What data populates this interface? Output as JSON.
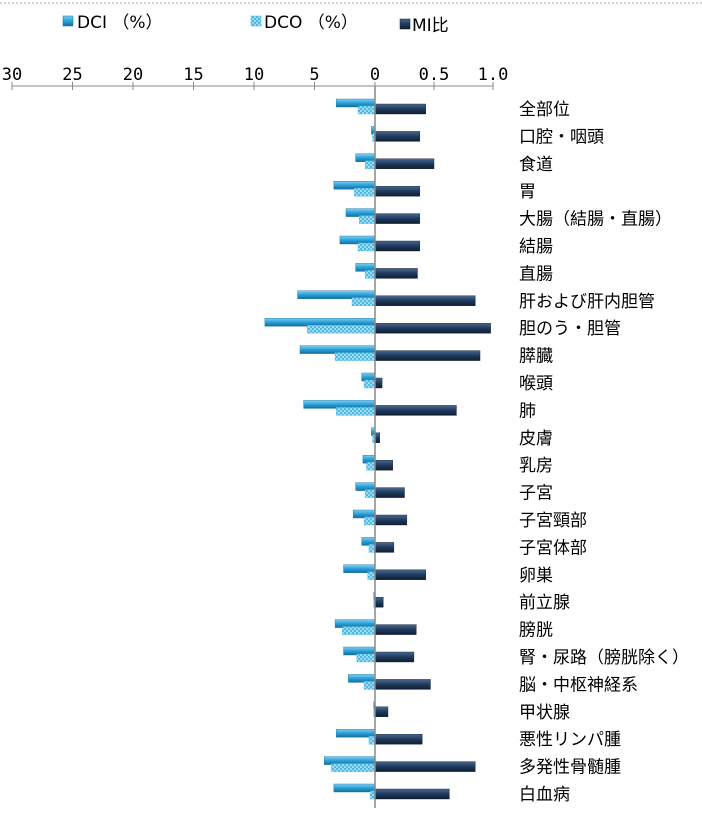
{
  "chart_data": {
    "type": "bar",
    "orientation": "horizontal",
    "layout": "diverging: DCI and DCO extend left (percent scale 0-30), MI比 extends right (ratio scale 0-1.0)",
    "legend": {
      "placement": "top",
      "entries": [
        "DCI （%）",
        "DCO （%）",
        "MI比"
      ]
    },
    "left_axis": {
      "range": [
        0,
        30
      ],
      "ticks": [
        30,
        25,
        20,
        15,
        10,
        5,
        0
      ],
      "tick_labels": [
        "30",
        "25",
        "20",
        "15",
        "10",
        "5",
        "0"
      ]
    },
    "right_axis": {
      "range": [
        0,
        1.0
      ],
      "ticks": [
        0.5,
        1.0
      ],
      "tick_labels": [
        "0.5",
        "1.0"
      ]
    },
    "categories": [
      "全部位",
      "口腔・咽頭",
      "食道",
      "胃",
      "大腸（結腸・直腸）",
      "結腸",
      "直腸",
      "肝および肝内胆管",
      "胆のう・胆管",
      "膵臓",
      "喉頭",
      "肺",
      "皮膚",
      "乳房",
      "子宮",
      "子宮頸部",
      "子宮体部",
      "卵巣",
      "前立腺",
      "膀胱",
      "腎・尿路（膀胱除く）",
      "脳・中枢神経系",
      "甲状腺",
      "悪性リンパ腫",
      "多発性骨髄腫",
      "白血病"
    ],
    "series": [
      {
        "name": "DCI （%）",
        "side": "left",
        "color": "#2aa0d8",
        "values": [
          3.2,
          0.3,
          1.6,
          3.4,
          2.4,
          2.9,
          1.6,
          6.4,
          9.1,
          6.2,
          1.1,
          5.9,
          0.3,
          1.0,
          1.6,
          1.8,
          1.1,
          2.6,
          0.1,
          3.3,
          2.6,
          2.2,
          0.1,
          3.2,
          4.2,
          3.4
        ]
      },
      {
        "name": "DCO （%）",
        "side": "left",
        "color": "#5fc6ec",
        "values": [
          1.4,
          0.2,
          0.8,
          1.7,
          1.3,
          1.4,
          0.8,
          1.9,
          5.6,
          3.3,
          0.9,
          3.2,
          0.2,
          0.7,
          0.8,
          0.9,
          0.5,
          0.6,
          0.1,
          2.7,
          1.5,
          0.9,
          0.1,
          0.5,
          3.6,
          0.4
        ]
      },
      {
        "name": "MI比",
        "side": "right",
        "color": "#1f3a5c",
        "values": [
          0.43,
          0.38,
          0.5,
          0.38,
          0.38,
          0.38,
          0.36,
          0.85,
          0.98,
          0.89,
          0.06,
          0.69,
          0.04,
          0.15,
          0.25,
          0.27,
          0.16,
          0.43,
          0.07,
          0.35,
          0.33,
          0.47,
          0.11,
          0.4,
          0.85,
          0.63
        ]
      }
    ]
  }
}
